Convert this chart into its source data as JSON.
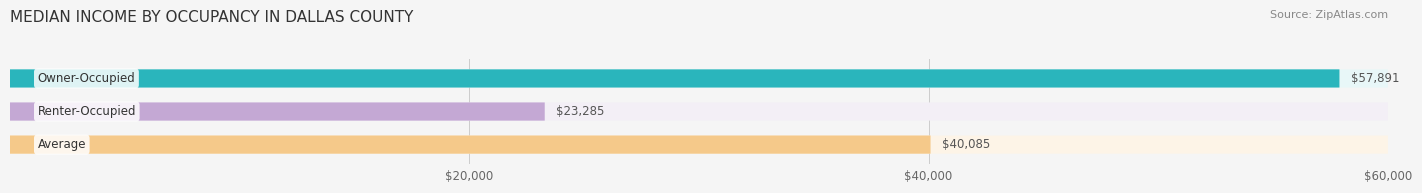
{
  "title": "MEDIAN INCOME BY OCCUPANCY IN DALLAS COUNTY",
  "source": "Source: ZipAtlas.com",
  "categories": [
    "Owner-Occupied",
    "Renter-Occupied",
    "Average"
  ],
  "values": [
    57891,
    23285,
    40085
  ],
  "labels": [
    "$57,891",
    "$23,285",
    "$40,085"
  ],
  "bar_colors": [
    "#2ab5bc",
    "#c4a8d4",
    "#f5c98a"
  ],
  "bar_bg_colors": [
    "#e8f7f8",
    "#f3eff6",
    "#fdf4e7"
  ],
  "xlim": [
    0,
    60000
  ],
  "xticks": [
    0,
    20000,
    40000,
    60000
  ],
  "xticklabels": [
    "",
    "$20,000",
    "$40,000",
    "$60,000"
  ],
  "title_fontsize": 11,
  "source_fontsize": 8,
  "label_fontsize": 8.5,
  "bar_height": 0.55,
  "figsize": [
    14.06,
    1.96
  ],
  "dpi": 100
}
